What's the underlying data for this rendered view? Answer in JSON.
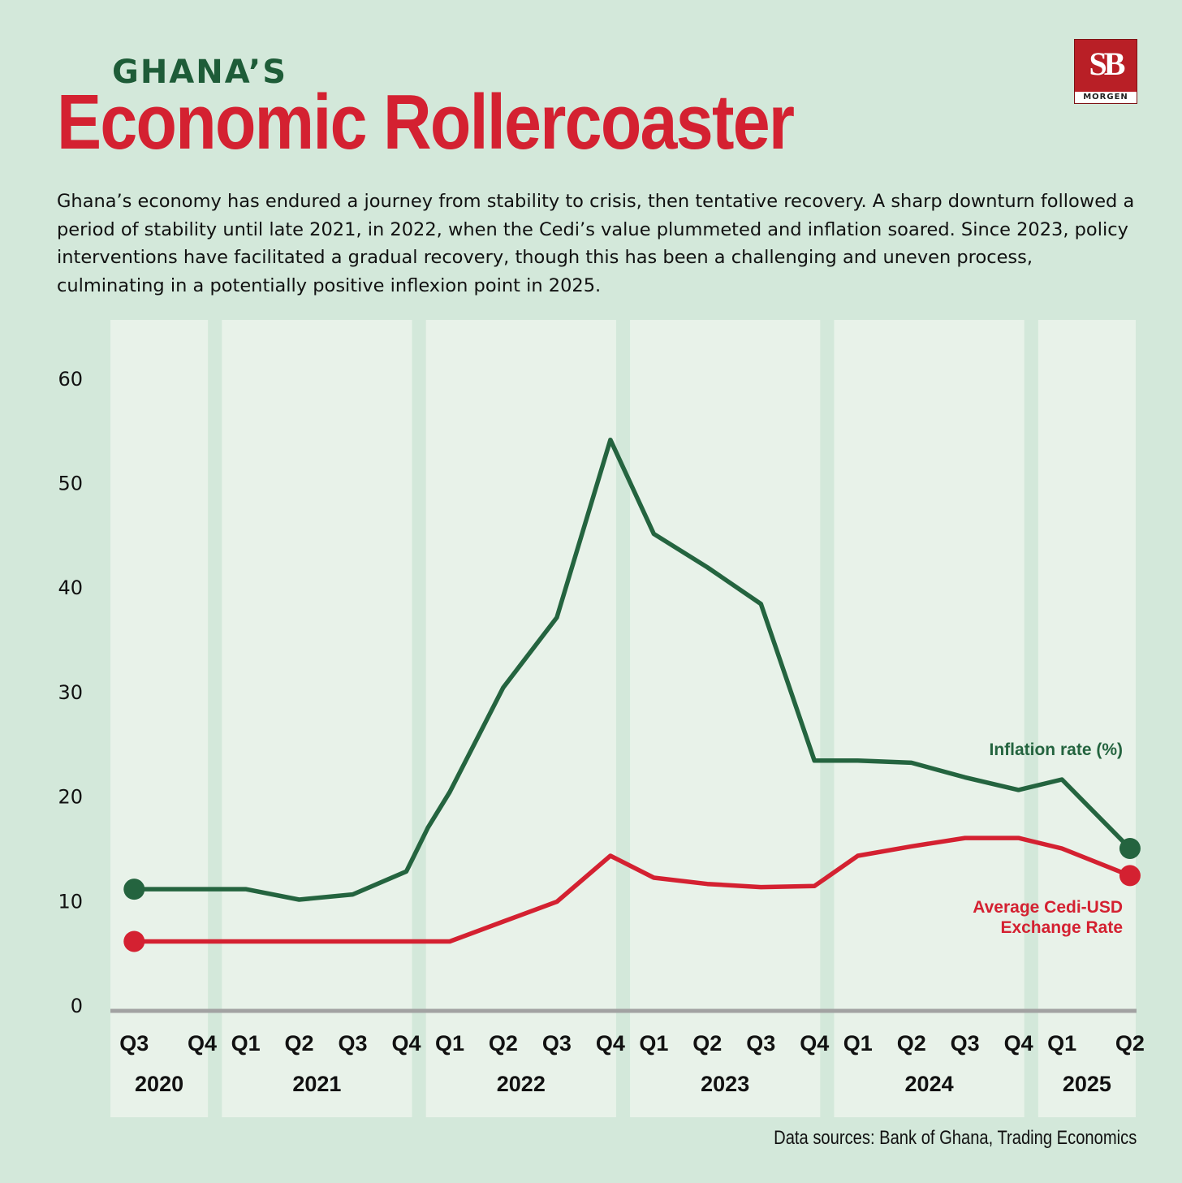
{
  "kicker": "GHANA’S",
  "title": "Economic Rollercoaster",
  "logo": {
    "mark": "SB",
    "sub": "MORGEN"
  },
  "description": "Ghana’s economy has endured a journey from stability to crisis, then tentative recovery. A sharp downturn followed a period of stability until late 2021, in 2022, when the Cedi’s value plummeted and inflation soared. Since 2023, policy interventions have facilitated a gradual recovery, though this has been a challenging and uneven process, culminating in a potentially positive inflexion point in 2025.",
  "source": "Data sources: Bank of Ghana, Trading Economics",
  "colors": {
    "inflation": "#24643f",
    "exchange": "#d42131",
    "band": "#e8f2e9",
    "background": "#d3e8da",
    "baseline": "#a2a2a2"
  },
  "chart_data": {
    "type": "line",
    "title": "Economic Rollercoaster",
    "ylim": [
      0,
      65
    ],
    "yticks": [
      0,
      10,
      20,
      30,
      40,
      50,
      60
    ],
    "years": [
      {
        "label": "2020",
        "quarters": [
          "Q3",
          "Q4"
        ]
      },
      {
        "label": "2021",
        "quarters": [
          "Q1",
          "Q2",
          "Q3",
          "Q4"
        ]
      },
      {
        "label": "2022",
        "quarters": [
          "Q1",
          "Q2",
          "Q3",
          "Q4"
        ]
      },
      {
        "label": "2023",
        "quarters": [
          "Q1",
          "Q2",
          "Q3",
          "Q4"
        ]
      },
      {
        "label": "2024",
        "quarters": [
          "Q1",
          "Q2",
          "Q3",
          "Q4"
        ]
      },
      {
        "label": "2025",
        "quarters": [
          "Q1",
          "Q2"
        ]
      }
    ],
    "series": [
      {
        "name": "Inflation rate (%)",
        "label_lines": [
          "Inflation rate (%)"
        ],
        "points": [
          [
            2020.625,
            11.1
          ],
          [
            2020.875,
            11.1
          ],
          [
            2021.125,
            11.1
          ],
          [
            2021.375,
            10.1
          ],
          [
            2021.625,
            10.6
          ],
          [
            2021.875,
            12.8
          ],
          [
            2022.0,
            17
          ],
          [
            2022.125,
            20.4
          ],
          [
            2022.375,
            30.4
          ],
          [
            2022.625,
            37.1
          ],
          [
            2022.875,
            54.1
          ],
          [
            2023.125,
            45.1
          ],
          [
            2023.375,
            41.9
          ],
          [
            2023.625,
            38.4
          ],
          [
            2023.875,
            23.4
          ],
          [
            2024.125,
            23.4
          ],
          [
            2024.375,
            23.2
          ],
          [
            2024.625,
            21.8
          ],
          [
            2024.875,
            20.6
          ],
          [
            2025.125,
            21.6
          ],
          [
            2025.375,
            15.0
          ]
        ]
      },
      {
        "name": "Average Cedi-USD Exchange Rate",
        "label_lines": [
          "Average Cedi-USD",
          "Exchange Rate"
        ],
        "points": [
          [
            2020.625,
            6.1
          ],
          [
            2020.875,
            6.1
          ],
          [
            2021.125,
            6.1
          ],
          [
            2021.375,
            6.1
          ],
          [
            2021.625,
            6.1
          ],
          [
            2021.875,
            6.1
          ],
          [
            2022.125,
            6.1
          ],
          [
            2022.375,
            8.0
          ],
          [
            2022.625,
            9.9
          ],
          [
            2022.875,
            14.3
          ],
          [
            2023.125,
            12.2
          ],
          [
            2023.375,
            11.6
          ],
          [
            2023.625,
            11.3
          ],
          [
            2023.875,
            11.4
          ],
          [
            2024.125,
            14.3
          ],
          [
            2024.375,
            15.2
          ],
          [
            2024.625,
            16.0
          ],
          [
            2024.875,
            16.0
          ],
          [
            2025.125,
            15.0
          ],
          [
            2025.375,
            12.4
          ]
        ]
      }
    ]
  }
}
